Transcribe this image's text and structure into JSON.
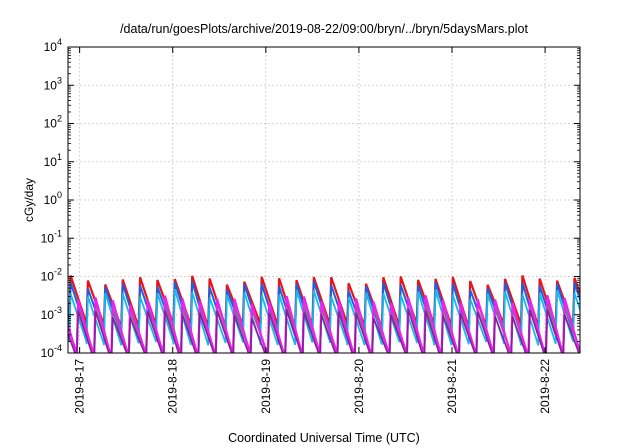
{
  "chart_data": {
    "type": "line",
    "title": "/data/run/goesPlots/archive/2019-08-22/09:00/bryn/../bryn/5daysMars.plot",
    "xlabel": "Coordinated Universal Time (UTC)",
    "ylabel": "cGy/day",
    "yscale": "log",
    "ylim": [
      0.0001,
      10000
    ],
    "xlim": [
      "2019-08-16 21:00",
      "2019-08-22 09:00"
    ],
    "grid": true,
    "y_ticks": [
      {
        "base": "10",
        "exp": "-4"
      },
      {
        "base": "10",
        "exp": "-3"
      },
      {
        "base": "10",
        "exp": "-2"
      },
      {
        "base": "10",
        "exp": "-1"
      },
      {
        "base": "10",
        "exp": "0"
      },
      {
        "base": "10",
        "exp": "1"
      },
      {
        "base": "10",
        "exp": "2"
      },
      {
        "base": "10",
        "exp": "3"
      },
      {
        "base": "10",
        "exp": "4"
      }
    ],
    "x_ticks": [
      {
        "label": "2019-8-17",
        "time": "2019-08-17 00:00"
      },
      {
        "label": "2019-8-18",
        "time": "2019-08-18 00:00"
      },
      {
        "label": "2019-8-19",
        "time": "2019-08-19 00:00"
      },
      {
        "label": "2019-8-20",
        "time": "2019-08-20 00:00"
      },
      {
        "label": "2019-8-21",
        "time": "2019-08-21 00:00"
      },
      {
        "label": "2019-8-22",
        "time": "2019-08-22 00:00"
      }
    ],
    "sawtooth_period_hours": 4.48,
    "series": [
      {
        "color": "#e8141c",
        "peak": 0.0085,
        "trough": 0.00052,
        "phase_hours": 0.3,
        "width": 2.2
      },
      {
        "color": "#1f5fe0",
        "peak": 0.006,
        "trough": 0.00032,
        "phase_hours": 0.3,
        "width": 2.0
      },
      {
        "color": "#18b8e8",
        "peak": 0.0036,
        "trough": 0.00018,
        "phase_hours": 0.3,
        "width": 1.8
      },
      {
        "color": "#7a7a7a",
        "peak": 0.0015,
        "trough": 9e-05,
        "phase_hours": 2.24,
        "width": 2.2
      },
      {
        "color": "#ee22ee",
        "peak": 0.0025,
        "trough": 8e-05,
        "phase_hours": 2.24,
        "width": 2.2
      },
      {
        "color": "#8b1ea0",
        "peak": 0.0011,
        "trough": 7e-05,
        "phase_hours": 2.24,
        "width": 1.6
      }
    ]
  }
}
